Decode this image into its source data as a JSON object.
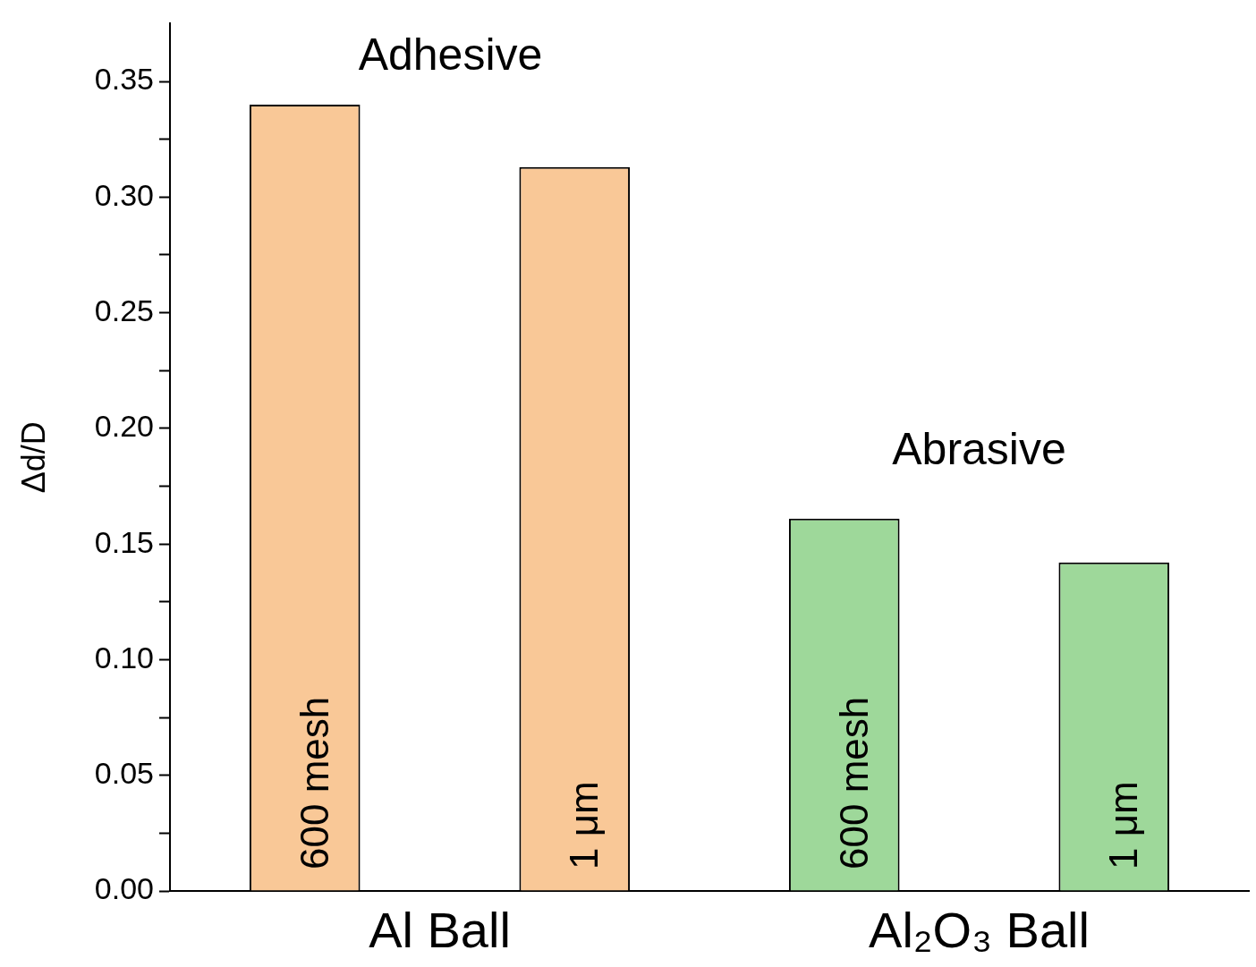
{
  "chart_data": {
    "type": "bar",
    "ylabel": "Δd/D",
    "categories": [
      "600 mesh",
      "1 μm",
      "600 mesh",
      "1 μm"
    ],
    "values": [
      0.34,
      0.313,
      0.161,
      0.142
    ],
    "colors": [
      "#f9c897",
      "#f9c897",
      "#9ed89a",
      "#9ed89a"
    ],
    "ylim": [
      0,
      0.375
    ],
    "yticks": [
      {
        "value": 0,
        "label": "0.00"
      },
      {
        "value": 0.025,
        "label": null
      },
      {
        "value": 0.05,
        "label": "0.05"
      },
      {
        "value": 0.075,
        "label": null
      },
      {
        "value": 0.1,
        "label": "0.10"
      },
      {
        "value": 0.125,
        "label": null
      },
      {
        "value": 0.15,
        "label": "0.15"
      },
      {
        "value": 0.175,
        "label": null
      },
      {
        "value": 0.2,
        "label": "0.20"
      },
      {
        "value": 0.225,
        "label": null
      },
      {
        "value": 0.25,
        "label": "0.25"
      },
      {
        "value": 0.275,
        "label": null
      },
      {
        "value": 0.3,
        "label": "0.30"
      },
      {
        "value": 0.325,
        "label": null
      },
      {
        "value": 0.35,
        "label": "0.35"
      }
    ],
    "grid": false,
    "annotations": [
      "Adhesive",
      "Abrasive",
      "Al Ball",
      "Al₂O₃ Ball"
    ]
  }
}
